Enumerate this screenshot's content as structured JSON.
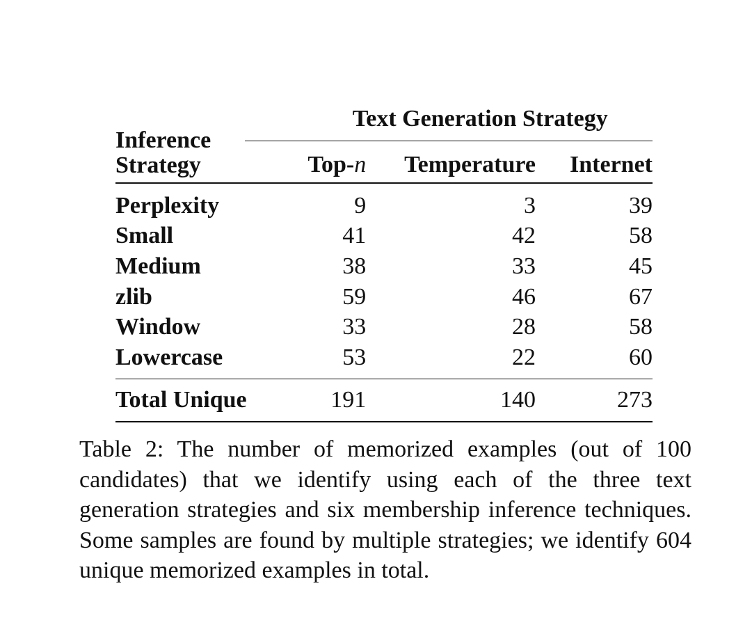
{
  "table": {
    "group_header": "Text Generation Strategy",
    "stub_header_line1": "Inference",
    "stub_header_line2": "Strategy",
    "columns": {
      "top_n_prefix": "Top-",
      "top_n_var": "n",
      "temperature": "Temperature",
      "internet": "Internet"
    },
    "rows": [
      {
        "label": "Perplexity",
        "top_n": "9",
        "temperature": "3",
        "internet": "39"
      },
      {
        "label": "Small",
        "top_n": "41",
        "temperature": "42",
        "internet": "58"
      },
      {
        "label": "Medium",
        "top_n": "38",
        "temperature": "33",
        "internet": "45"
      },
      {
        "label": "zlib",
        "top_n": "59",
        "temperature": "46",
        "internet": "67"
      },
      {
        "label": "Window",
        "top_n": "33",
        "temperature": "28",
        "internet": "58"
      },
      {
        "label": "Lowercase",
        "top_n": "53",
        "temperature": "22",
        "internet": "60"
      }
    ],
    "total": {
      "label": "Total Unique",
      "top_n": "191",
      "temperature": "140",
      "internet": "273"
    }
  },
  "caption": {
    "text": "Table 2: The number of memorized examples (out of 100 candidates) that we identify using each of the three text generation strategies and six membership inference techniques. Some samples are found by multiple strategies; we identify 604 unique memorized examples in total."
  }
}
